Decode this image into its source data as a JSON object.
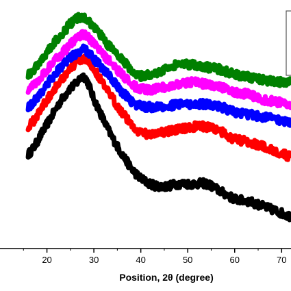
{
  "chart_data": {
    "type": "line",
    "title": "",
    "xlabel": "Position, 2θ (degree)",
    "ylabel": "",
    "xlim": [
      10,
      72
    ],
    "ylim": [
      0,
      100
    ],
    "grid": false,
    "legend": "top-right",
    "x_ticks": [
      20,
      30,
      40,
      50,
      60,
      70
    ],
    "x_tick_labels": [
      "20",
      "30",
      "40",
      "50",
      "60",
      "70"
    ],
    "series": [
      {
        "color": "#000000",
        "x": [
          16,
          20,
          24,
          26,
          28,
          30,
          33,
          36,
          39,
          42,
          45,
          48,
          51,
          54,
          57,
          60,
          63,
          66,
          69,
          72
        ],
        "y": [
          38,
          50,
          62,
          66,
          69,
          60,
          48,
          38,
          30,
          26,
          25,
          26,
          26,
          26,
          23,
          20,
          19,
          17,
          15,
          13
        ]
      },
      {
        "color": "#ff0000",
        "x": [
          16,
          20,
          24,
          26,
          28,
          30,
          33,
          36,
          39,
          42,
          45,
          48,
          51,
          54,
          57,
          60,
          63,
          66,
          69,
          72
        ],
        "y": [
          49,
          60,
          70,
          74,
          76,
          72,
          63,
          55,
          48,
          46,
          47,
          48,
          49,
          49,
          47,
          44,
          43,
          41,
          39,
          37
        ]
      },
      {
        "color": "#0000ff",
        "x": [
          16,
          20,
          24,
          26,
          28,
          30,
          33,
          36,
          39,
          42,
          45,
          48,
          51,
          54,
          57,
          60,
          63,
          66,
          69,
          72
        ],
        "y": [
          57,
          66,
          75,
          78,
          80,
          76,
          70,
          63,
          58,
          57,
          57,
          58,
          58,
          58,
          57,
          55,
          54,
          53,
          52,
          51
        ]
      },
      {
        "color": "#ff00ff",
        "x": [
          16,
          20,
          24,
          26,
          28,
          30,
          33,
          36,
          39,
          42,
          45,
          48,
          51,
          54,
          57,
          60,
          63,
          66,
          69,
          72
        ],
        "y": [
          64,
          72,
          80,
          84,
          86,
          82,
          76,
          70,
          65,
          64,
          65,
          66,
          67,
          66,
          65,
          63,
          62,
          60,
          59,
          58
        ]
      },
      {
        "color": "#008000",
        "x": [
          16,
          20,
          24,
          26,
          28,
          30,
          33,
          36,
          39,
          42,
          45,
          48,
          51,
          54,
          57,
          60,
          63,
          66,
          69,
          72
        ],
        "y": [
          70,
          79,
          88,
          92,
          93,
          89,
          82,
          76,
          70,
          70,
          72,
          74,
          74,
          73,
          72,
          70,
          69,
          68,
          67,
          67
        ]
      }
    ]
  }
}
